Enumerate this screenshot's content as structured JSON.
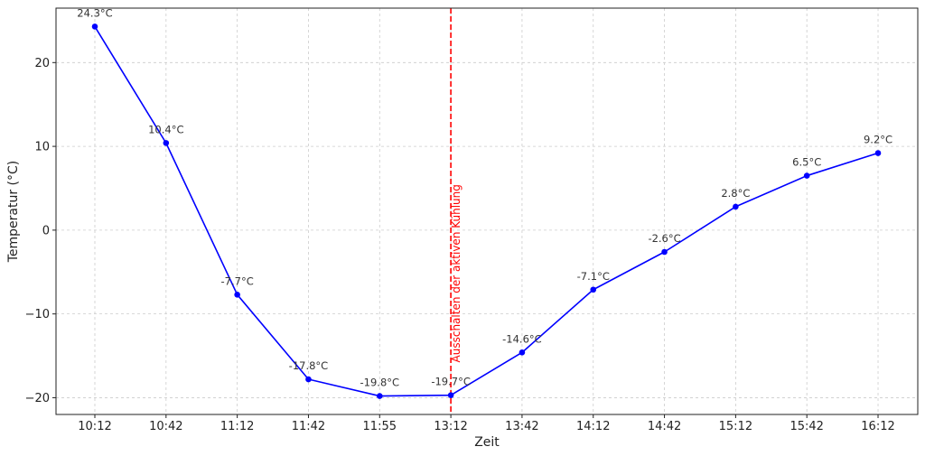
{
  "chart_data": {
    "type": "line",
    "title": "",
    "xlabel": "Zeit",
    "ylabel": "Temperatur (°C)",
    "categories": [
      "10:12",
      "10:42",
      "11:12",
      "11:42",
      "11:55",
      "13:12",
      "13:42",
      "14:12",
      "14:42",
      "15:12",
      "15:42",
      "16:12"
    ],
    "series": [
      {
        "values": [
          24.3,
          10.4,
          -7.7,
          -17.8,
          -19.8,
          -19.7,
          -14.6,
          -7.1,
          -2.6,
          2.8,
          6.5,
          9.2
        ],
        "data_labels": [
          "24.3°C",
          "10.4°C",
          "-7.7°C",
          "-17.8°C",
          "-19.8°C",
          "-19.7°C",
          "-14.6°C",
          "-7.1°C",
          "-2.6°C",
          "2.8°C",
          "6.5°C",
          "9.2°C"
        ],
        "color": "#0000ff"
      }
    ],
    "yticks": [
      20,
      10,
      0,
      -10,
      -20
    ],
    "ytick_labels": [
      "20",
      "10",
      "0",
      "−10",
      "−20"
    ],
    "ylim": [
      -22,
      26.5
    ],
    "grid": true,
    "annotations": [
      {
        "type": "vline",
        "at_category": "13:12",
        "label": "Ausschalten der aktiven Kühlung",
        "color": "#ff0000",
        "style": "dashed"
      }
    ]
  }
}
